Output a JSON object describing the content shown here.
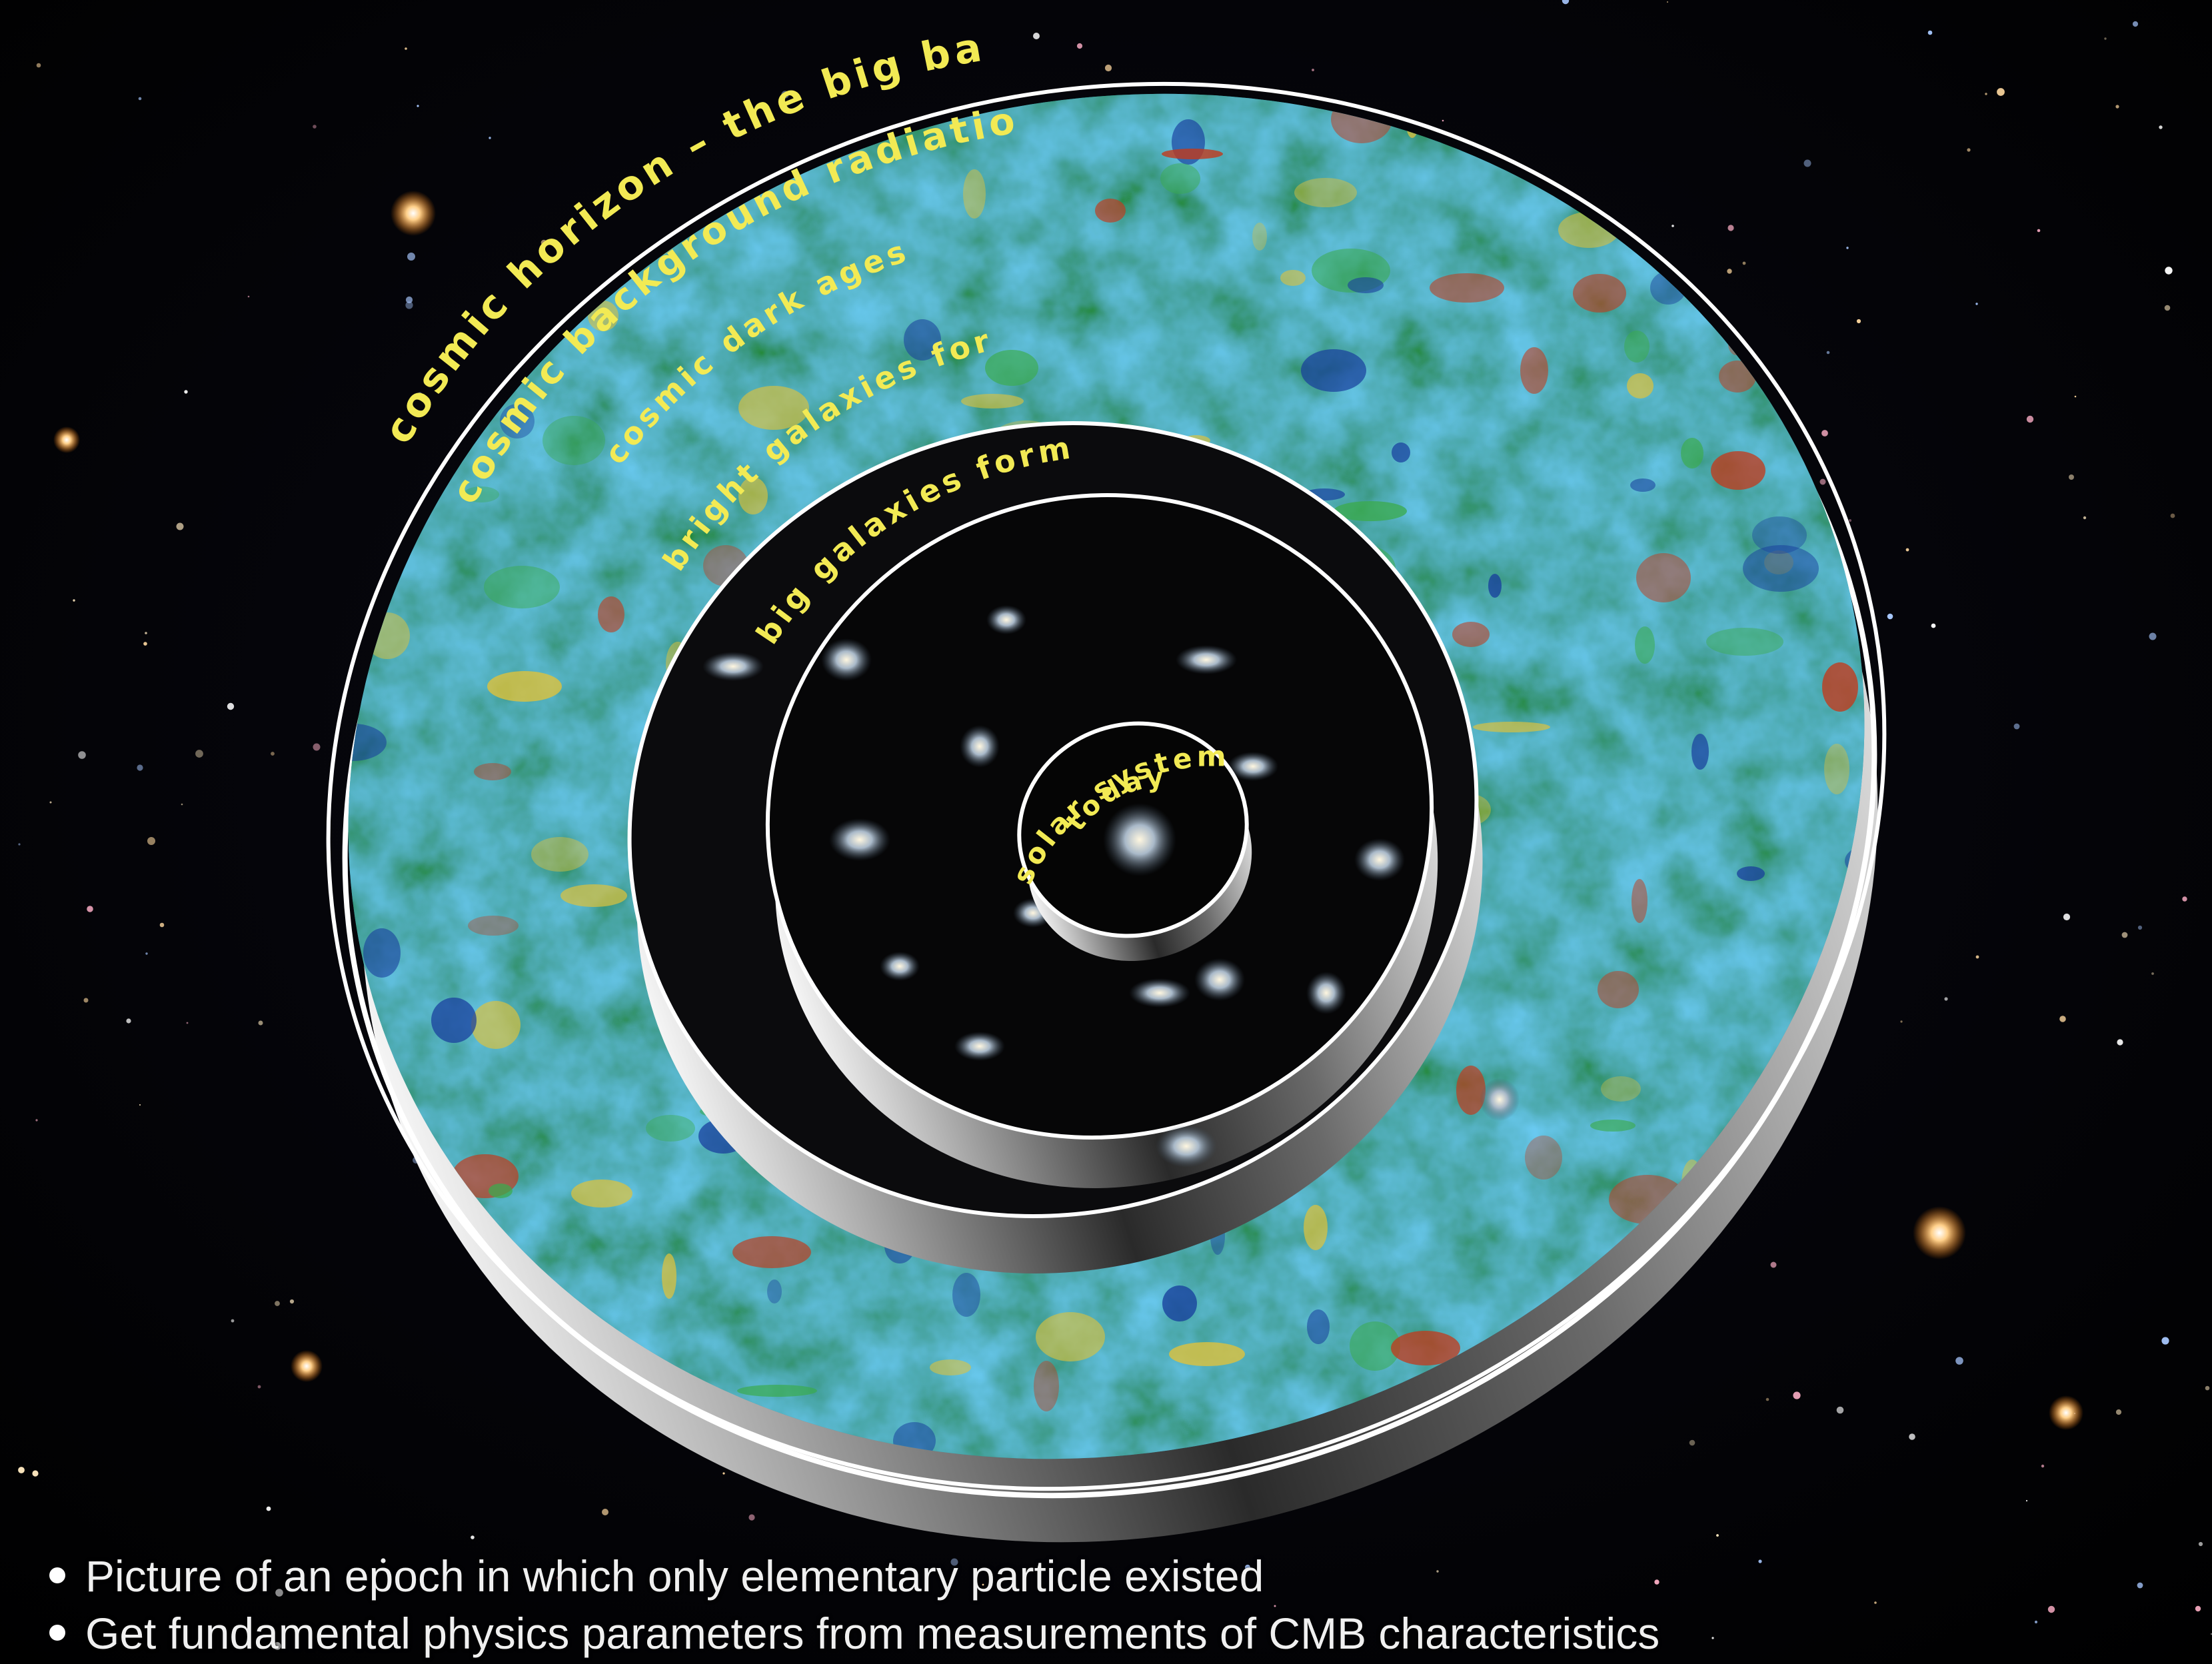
{
  "diagram": {
    "rings": [
      {
        "id": "outer",
        "label": "cosmic horizon – the big bang"
      },
      {
        "id": "cmb",
        "label": "cosmic background radiation"
      },
      {
        "id": "dark",
        "label": "cosmic dark ages"
      },
      {
        "id": "bright",
        "label": "bright galaxies form"
      },
      {
        "id": "big",
        "label": "big galaxies form"
      },
      {
        "id": "solar",
        "label": "solar system forms"
      },
      {
        "id": "today",
        "label": "today"
      }
    ],
    "colors": {
      "space": "#02030a",
      "label": "#f2ea54",
      "cmb_blue": "#173c9c",
      "cmb_teal": "#1f8fa0",
      "cmb_green": "#3bab4e",
      "cmb_red": "#c23a1c",
      "ring_edge": "#ffffff"
    }
  },
  "bullets": [
    "Picture of an epoch in which only elementary particle existed",
    "Get fundamental physics parameters from measurements of CMB characteristics"
  ]
}
